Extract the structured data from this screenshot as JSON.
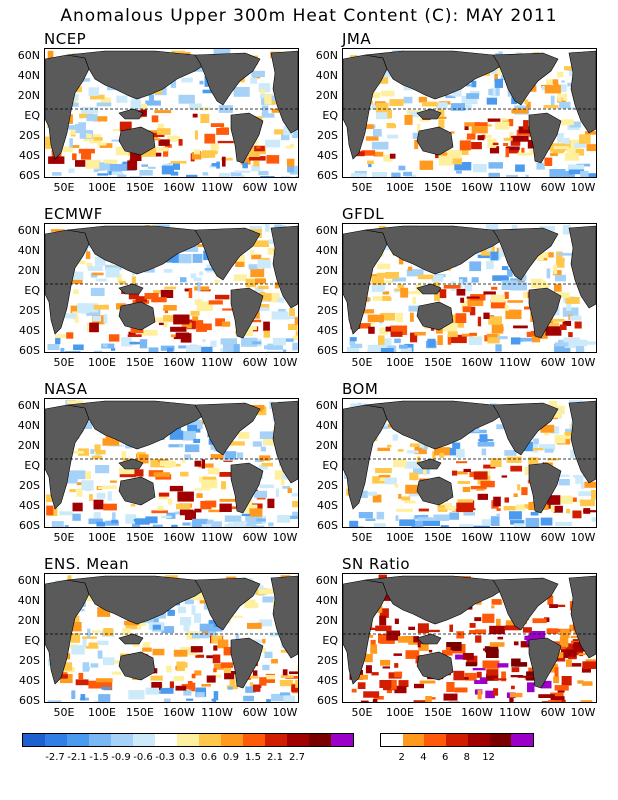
{
  "title": "Anomalous Upper 300m Heat Content (C): MAY 2011",
  "panels": [
    {
      "name": "NCEP",
      "col": 0,
      "row": 0
    },
    {
      "name": "JMA",
      "col": 1,
      "row": 0
    },
    {
      "name": "ECMWF",
      "col": 0,
      "row": 1
    },
    {
      "name": "GFDL",
      "col": 1,
      "row": 1
    },
    {
      "name": "NASA",
      "col": 0,
      "row": 2
    },
    {
      "name": "BOM",
      "col": 1,
      "row": 2
    },
    {
      "name": "ENS. Mean",
      "col": 0,
      "row": 3
    },
    {
      "name": "SN Ratio",
      "col": 1,
      "row": 3
    }
  ],
  "lat_labels": [
    "60N",
    "40N",
    "20N",
    "EQ",
    "20S",
    "40S",
    "60S"
  ],
  "lon_labels": [
    "50E",
    "100E",
    "150E",
    "160W",
    "110W",
    "60W",
    "10W"
  ],
  "anomaly_colorbar": {
    "colors": [
      "#1e5fd2",
      "#2f7fe6",
      "#4a9af0",
      "#79b7f5",
      "#a6d2f8",
      "#cdeafb",
      "#ffffff",
      "#fff0a0",
      "#ffc84a",
      "#ff9a1e",
      "#ff5a0a",
      "#d21e00",
      "#a00000",
      "#7a0000",
      "#9b00c8"
    ],
    "labels": [
      "-2.7",
      "-2.1",
      "-1.5",
      "-0.9",
      "-0.6",
      "-0.3",
      "0.3",
      "0.6",
      "0.9",
      "1.5",
      "2.1",
      "2.7"
    ]
  },
  "sn_colorbar": {
    "colors": [
      "#ffffff",
      "#ff9a1e",
      "#ff5a0a",
      "#d21e00",
      "#a00000",
      "#7a0000",
      "#9b00c8"
    ],
    "labels": [
      "2",
      "4",
      "6",
      "8",
      "12"
    ]
  },
  "land_color": "#5a5a5a"
}
